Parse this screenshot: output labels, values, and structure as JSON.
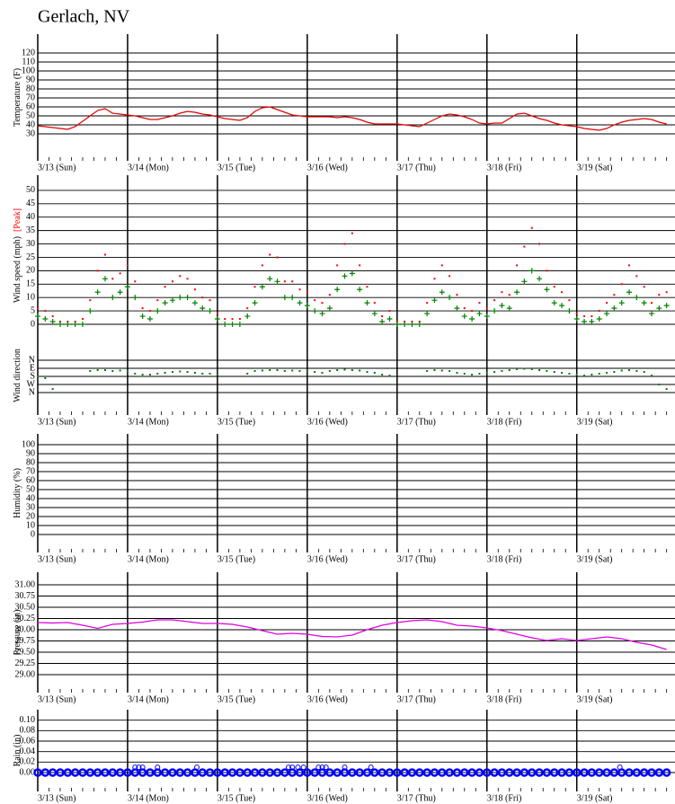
{
  "title": "Gerlach, NV",
  "chart_data": [
    {
      "type": "line",
      "ylabel": "Temperature (F)",
      "color": "#e00000",
      "xlim": [
        0,
        170
      ],
      "ylim": [
        0,
        140
      ],
      "yticks": [
        30,
        40,
        50,
        60,
        70,
        80,
        90,
        100,
        110,
        120
      ],
      "xticks": [
        {
          "value": 0,
          "label": "3/13 (Sun)"
        },
        {
          "value": 24,
          "label": "3/14 (Mon)"
        },
        {
          "value": 48,
          "label": "3/15 (Tue)"
        },
        {
          "value": 72,
          "label": "3/16 (Wed)"
        },
        {
          "value": 96,
          "label": "3/17 (Thu)"
        },
        {
          "value": 120,
          "label": "3/18 (Fri)"
        },
        {
          "value": 144,
          "label": "3/19 (Sat)"
        }
      ],
      "x": [
        0,
        2,
        4,
        6,
        8,
        10,
        12,
        14,
        16,
        18,
        20,
        22,
        24,
        26,
        28,
        30,
        32,
        34,
        36,
        38,
        40,
        42,
        44,
        46,
        48,
        50,
        52,
        54,
        56,
        58,
        60,
        62,
        64,
        66,
        68,
        70,
        72,
        74,
        76,
        78,
        80,
        82,
        84,
        86,
        88,
        90,
        92,
        94,
        96,
        98,
        100,
        102,
        104,
        106,
        108,
        110,
        112,
        114,
        116,
        118,
        120,
        122,
        124,
        126,
        128,
        130,
        132,
        134,
        136,
        138,
        140,
        142,
        144,
        146,
        148,
        150,
        152,
        154,
        156,
        158,
        160,
        162,
        164,
        166,
        168
      ],
      "values": [
        39,
        38,
        37,
        36,
        35,
        38,
        44,
        50,
        56,
        58,
        53,
        52,
        51,
        50,
        48,
        46,
        46,
        48,
        50,
        53,
        55,
        54,
        52,
        51,
        49,
        47,
        46,
        45,
        48,
        55,
        59,
        60,
        57,
        54,
        51,
        50,
        49,
        49,
        49,
        49,
        48,
        49,
        48,
        46,
        43,
        41,
        41,
        41,
        41,
        40,
        39,
        38,
        42,
        46,
        50,
        52,
        51,
        49,
        46,
        42,
        41,
        42,
        42,
        47,
        52,
        53,
        50,
        47,
        45,
        42,
        40,
        39,
        38,
        36,
        35,
        34,
        36,
        40,
        43,
        45,
        46,
        47,
        46,
        43,
        41
      ]
    },
    {
      "type": "scatter",
      "ylabel": "Wind speed (mph)",
      "xlim": [
        0,
        170
      ],
      "ylim": [
        0,
        55
      ],
      "yticks": [
        0,
        5,
        10,
        15,
        20,
        25,
        30,
        35,
        40,
        45,
        50
      ],
      "xticks": [
        0,
        24,
        48,
        72,
        96,
        120,
        144
      ],
      "x": [
        0,
        2,
        4,
        6,
        8,
        10,
        12,
        14,
        16,
        18,
        20,
        22,
        24,
        26,
        28,
        30,
        32,
        34,
        36,
        38,
        40,
        42,
        44,
        46,
        48,
        50,
        52,
        54,
        56,
        58,
        60,
        62,
        64,
        66,
        68,
        70,
        72,
        74,
        76,
        78,
        80,
        82,
        84,
        86,
        88,
        90,
        92,
        94,
        96,
        98,
        100,
        102,
        104,
        106,
        108,
        110,
        112,
        114,
        116,
        118,
        120,
        122,
        124,
        126,
        128,
        130,
        132,
        134,
        136,
        138,
        140,
        142,
        144,
        146,
        148,
        150,
        152,
        154,
        156,
        158,
        160,
        162,
        164,
        166,
        168
      ],
      "series": [
        {
          "name": "[Peak]",
          "color": "#ff0000",
          "marker": "dot",
          "values": [
            6,
            5,
            3,
            1,
            1,
            1,
            2,
            9,
            20,
            26,
            17,
            19,
            22,
            16,
            6,
            5,
            9,
            14,
            16,
            18,
            17,
            13,
            10,
            9,
            4,
            2,
            2,
            2,
            6,
            14,
            22,
            26,
            25,
            16,
            16,
            13,
            12,
            9,
            8,
            11,
            22,
            30,
            34,
            22,
            14,
            8,
            3,
            5,
            1,
            1,
            1,
            1,
            8,
            17,
            22,
            18,
            11,
            6,
            5,
            8,
            6,
            9,
            12,
            11,
            22,
            29,
            36,
            30,
            20,
            14,
            12,
            9,
            4,
            3,
            3,
            5,
            8,
            11,
            15,
            22,
            18,
            14,
            8,
            11,
            12
          ]
        },
        {
          "color": "#008000",
          "marker": "plus",
          "values": [
            3,
            2,
            1,
            0,
            0,
            0,
            0,
            5,
            12,
            17,
            10,
            12,
            14,
            10,
            3,
            2,
            5,
            8,
            9,
            10,
            10,
            8,
            6,
            5,
            2,
            0,
            0,
            0,
            3,
            8,
            14,
            17,
            16,
            10,
            10,
            8,
            7,
            5,
            4,
            6,
            13,
            18,
            19,
            13,
            8,
            4,
            1,
            2,
            0,
            0,
            0,
            0,
            4,
            9,
            12,
            10,
            6,
            3,
            2,
            4,
            3,
            5,
            7,
            6,
            12,
            16,
            20,
            17,
            13,
            8,
            7,
            5,
            2,
            1,
            1,
            2,
            4,
            6,
            8,
            12,
            10,
            8,
            4,
            6,
            7
          ]
        }
      ]
    },
    {
      "type": "scatter",
      "ylabel": "Wind direction",
      "color": "#008000",
      "marker": "dot",
      "xlim": [
        0,
        170
      ],
      "ylim": [
        630,
        -270
      ],
      "yticks": [
        {
          "value": 0,
          "label": "N"
        },
        {
          "value": 90,
          "label": "E"
        },
        {
          "value": 180,
          "label": "S"
        },
        {
          "value": 270,
          "label": "W"
        },
        {
          "value": 360,
          "label": "N"
        }
      ],
      "xticks": [
        {
          "value": 0,
          "label": "3/13 (Sun)"
        },
        {
          "value": 24,
          "label": "3/14 (Mon)"
        },
        {
          "value": 48,
          "label": "3/15 (Tue)"
        },
        {
          "value": 72,
          "label": "3/16 (Wed)"
        },
        {
          "value": 96,
          "label": "3/17 (Thu)"
        },
        {
          "value": 120,
          "label": "3/18 (Fri)"
        },
        {
          "value": 144,
          "label": "3/19 (Sat)"
        }
      ],
      "x": [
        0,
        2,
        4,
        6,
        8,
        10,
        12,
        14,
        16,
        18,
        20,
        22,
        24,
        26,
        28,
        30,
        32,
        34,
        36,
        38,
        40,
        42,
        44,
        46,
        48,
        50,
        52,
        54,
        56,
        58,
        60,
        62,
        64,
        66,
        68,
        70,
        72,
        74,
        76,
        78,
        80,
        82,
        84,
        86,
        88,
        90,
        92,
        94,
        96,
        98,
        100,
        102,
        104,
        106,
        108,
        110,
        112,
        114,
        116,
        118,
        120,
        122,
        124,
        126,
        128,
        130,
        132,
        134,
        136,
        138,
        140,
        142,
        144,
        146,
        148,
        150,
        152,
        154,
        156,
        158,
        160,
        162,
        164,
        166,
        168
      ],
      "values": [
        180,
        200,
        320,
        null,
        null,
        null,
        null,
        120,
        110,
        110,
        120,
        115,
        120,
        150,
        160,
        160,
        150,
        140,
        130,
        125,
        130,
        140,
        150,
        150,
        160,
        null,
        null,
        null,
        150,
        120,
        115,
        110,
        110,
        120,
        115,
        120,
        120,
        130,
        140,
        120,
        110,
        105,
        110,
        115,
        130,
        140,
        160,
        170,
        null,
        null,
        null,
        null,
        120,
        110,
        115,
        120,
        140,
        150,
        160,
        150,
        140,
        130,
        120,
        110,
        100,
        95,
        100,
        110,
        120,
        130,
        140,
        150,
        160,
        170,
        160,
        150,
        140,
        130,
        115,
        110,
        120,
        130,
        170,
        270,
        320
      ]
    },
    {
      "type": "line",
      "ylabel": "Humidity (%)",
      "xlim": [
        0,
        170
      ],
      "ylim": [
        -20,
        112
      ],
      "yticks": [
        0,
        10,
        20,
        30,
        40,
        50,
        60,
        70,
        80,
        90,
        100
      ],
      "xticks": [
        {
          "value": 0,
          "label": "3/13 (Sun)"
        },
        {
          "value": 24,
          "label": "3/14 (Mon)"
        },
        {
          "value": 48,
          "label": "3/15 (Tue)"
        },
        {
          "value": 72,
          "label": "3/16 (Wed)"
        },
        {
          "value": 96,
          "label": "3/17 (Thu)"
        },
        {
          "value": 120,
          "label": "3/18 (Fri)"
        },
        {
          "value": 144,
          "label": "3/19 (Sat)"
        }
      ]
    },
    {
      "type": "line",
      "ylabel": "Pressure (in)",
      "color": "#e000e0",
      "xlim": [
        0,
        170
      ],
      "ylim": [
        28.6,
        31.28
      ],
      "yticks": [
        {
          "value": 29,
          "label": "29.00"
        },
        {
          "value": 29.25,
          "label": "29.25"
        },
        {
          "value": 29.5,
          "label": "29.50"
        },
        {
          "value": 29.75,
          "label": "29.75"
        },
        {
          "value": 30,
          "label": "30.00"
        },
        {
          "value": 30.25,
          "label": "30.25"
        },
        {
          "value": 30.5,
          "label": "30.50"
        },
        {
          "value": 30.75,
          "label": "30.75"
        },
        {
          "value": 31,
          "label": "31.00"
        }
      ],
      "xticks": [
        {
          "value": 0,
          "label": "3/13 (Sun)"
        },
        {
          "value": 24,
          "label": "3/14 (Mon)"
        },
        {
          "value": 48,
          "label": "3/15 (Tue)"
        },
        {
          "value": 72,
          "label": "3/16 (Wed)"
        },
        {
          "value": 96,
          "label": "3/17 (Thu)"
        },
        {
          "value": 120,
          "label": "3/18 (Fri)"
        },
        {
          "value": 144,
          "label": "3/19 (Sat)"
        }
      ],
      "x": [
        0,
        4,
        8,
        12,
        16,
        20,
        24,
        28,
        32,
        36,
        40,
        44,
        48,
        52,
        56,
        60,
        64,
        68,
        72,
        76,
        80,
        84,
        88,
        92,
        96,
        100,
        104,
        108,
        112,
        116,
        120,
        124,
        128,
        132,
        136,
        140,
        144,
        148,
        152,
        156,
        160,
        164,
        168
      ],
      "values": [
        30.16,
        30.15,
        30.16,
        30.1,
        30.03,
        30.12,
        30.14,
        30.17,
        30.22,
        30.22,
        30.18,
        30.14,
        30.14,
        30.12,
        30.06,
        29.98,
        29.9,
        29.92,
        29.9,
        29.85,
        29.84,
        29.88,
        30.0,
        30.1,
        30.16,
        30.2,
        30.22,
        30.18,
        30.1,
        30.08,
        30.04,
        29.98,
        29.9,
        29.82,
        29.76,
        29.8,
        29.76,
        29.8,
        29.84,
        29.8,
        29.72,
        29.66,
        29.56
      ]
    },
    {
      "type": "scatter",
      "ylabel": "Rain (in)",
      "color": "#0000ff",
      "marker": "circle",
      "xlim": [
        0,
        170
      ],
      "ylim": [
        -0.036,
        0.12
      ],
      "yticks": [
        {
          "value": 0,
          "label": "0.00"
        },
        {
          "value": 0.02,
          "label": "0.02"
        },
        {
          "value": 0.04,
          "label": "0.04"
        },
        {
          "value": 0.06,
          "label": "0.06"
        },
        {
          "value": 0.08,
          "label": "0.08"
        },
        {
          "value": 0.1,
          "label": "0.10"
        }
      ],
      "xticks": [
        {
          "value": 0,
          "label": "3/13 (Sun)"
        },
        {
          "value": 24,
          "label": "3/14 (Mon)"
        },
        {
          "value": 48,
          "label": "3/15 (Tue)"
        },
        {
          "value": 72,
          "label": "3/16 (Wed)"
        },
        {
          "value": 96,
          "label": "3/17 (Thu)"
        },
        {
          "value": 120,
          "label": "3/18 (Fri)"
        },
        {
          "value": 144,
          "label": "3/19 (Sat)"
        }
      ],
      "x": [
        0,
        2,
        4,
        6,
        8,
        10,
        12,
        14,
        16,
        18,
        20,
        22,
        24,
        26,
        28,
        30,
        32,
        34,
        36,
        38,
        40,
        42,
        44,
        46,
        48,
        50,
        52,
        54,
        56,
        58,
        60,
        62,
        64,
        66,
        68,
        70,
        72,
        74,
        76,
        78,
        80,
        82,
        84,
        86,
        88,
        90,
        92,
        94,
        96,
        98,
        100,
        102,
        104,
        106,
        108,
        110,
        112,
        114,
        116,
        118,
        120,
        122,
        124,
        126,
        128,
        130,
        132,
        134,
        136,
        138,
        140,
        142,
        144,
        146,
        148,
        150,
        152,
        154,
        156,
        158,
        160,
        162,
        164,
        166,
        168,
        26,
        27,
        28,
        32,
        42.5,
        67,
        68,
        69.5,
        71,
        75,
        76,
        77,
        82,
        89,
        155.5
      ],
      "values": [
        0,
        0,
        0,
        0,
        0,
        0,
        0,
        0,
        0,
        0,
        0,
        0,
        0,
        0,
        0,
        0,
        0,
        0,
        0,
        0,
        0,
        0,
        0,
        0,
        0,
        0,
        0,
        0,
        0,
        0,
        0,
        0,
        0,
        0,
        0,
        0,
        0,
        0,
        0,
        0,
        0,
        0,
        0,
        0,
        0,
        0,
        0,
        0,
        0,
        0,
        0,
        0,
        0,
        0,
        0,
        0,
        0,
        0,
        0,
        0,
        0,
        0,
        0,
        0,
        0,
        0,
        0,
        0,
        0,
        0,
        0,
        0,
        0,
        0,
        0,
        0,
        0,
        0,
        0,
        0,
        0,
        0,
        0,
        0,
        0,
        0.01,
        0.01,
        0.01,
        0.01,
        0.01,
        0.01,
        0.01,
        0.01,
        0.01,
        0.01,
        0.01,
        0.01,
        0.01,
        0.01,
        0.01
      ]
    }
  ]
}
